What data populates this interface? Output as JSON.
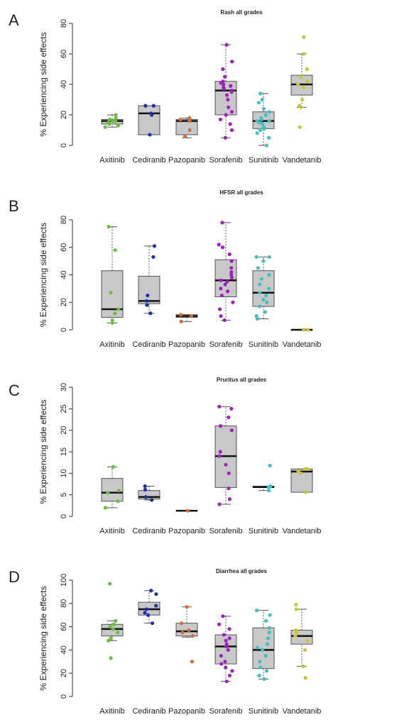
{
  "chart_data": [
    {
      "type": "box",
      "label": "A",
      "title": "Rash all grades",
      "ylabel": "% Experiencing side effects",
      "categories": [
        "Axitinib",
        "Cediranib",
        "Pazopanib",
        "Sorafenib",
        "Sunitinib",
        "Vandetanib"
      ],
      "colors": [
        "#6abf40",
        "#1f2fb0",
        "#d0703a",
        "#a020c0",
        "#40c0c0",
        "#c8c82a"
      ],
      "ylim": [
        0,
        80
      ],
      "yticks": [
        0,
        20,
        40,
        60,
        80
      ],
      "stats": [
        [
          12,
          14,
          16,
          17,
          20
        ],
        [
          7,
          7,
          21,
          26,
          26
        ],
        [
          5,
          7,
          16,
          17,
          18
        ],
        [
          5,
          20,
          36,
          42,
          66
        ],
        [
          0,
          11,
          16,
          22,
          34
        ],
        [
          25,
          33,
          40,
          46,
          60
        ]
      ],
      "points": [
        [
          12,
          13,
          14,
          15,
          16,
          16,
          17,
          18,
          20
        ],
        [
          7,
          20,
          21,
          26,
          26
        ],
        [
          6,
          10,
          16,
          17,
          18
        ],
        [
          5,
          10,
          14,
          17,
          20,
          22,
          25,
          30,
          33,
          35,
          36,
          37,
          38,
          39,
          40,
          41,
          42,
          45,
          50,
          55,
          66
        ],
        [
          0,
          5,
          8,
          10,
          11,
          12,
          14,
          15,
          16,
          16,
          17,
          18,
          20,
          22,
          24,
          28,
          30,
          34
        ],
        [
          12,
          25,
          26,
          30,
          38,
          40,
          42,
          45,
          50,
          60,
          71
        ]
      ]
    },
    {
      "type": "box",
      "label": "B",
      "title": "HFSR all grades",
      "ylabel": "% Experiencing side effects",
      "categories": [
        "Axitinib",
        "Cediranib",
        "Pazopanib",
        "Sorafenib",
        "Sunitinib",
        "Vandetanib"
      ],
      "colors": [
        "#6abf40",
        "#1f2fb0",
        "#d0703a",
        "#a020c0",
        "#40c0c0",
        "#c8c82a"
      ],
      "ylim": [
        0,
        80
      ],
      "yticks": [
        0,
        20,
        40,
        60,
        80
      ],
      "stats": [
        [
          5,
          9,
          15,
          43,
          75
        ],
        [
          12,
          19,
          21,
          39,
          61
        ],
        [
          6,
          9,
          10,
          11,
          11
        ],
        [
          7,
          24,
          36,
          51,
          78
        ],
        [
          8,
          17,
          27,
          43,
          53
        ],
        [
          0,
          0,
          0,
          0,
          0
        ]
      ],
      "points": [
        [
          5,
          7,
          12,
          15,
          27,
          58,
          75
        ],
        [
          12,
          18,
          21,
          25,
          53,
          61
        ],
        [
          6,
          10,
          11
        ],
        [
          7,
          10,
          15,
          20,
          25,
          28,
          30,
          33,
          35,
          36,
          38,
          40,
          42,
          45,
          50,
          55,
          60,
          62,
          78
        ],
        [
          8,
          10,
          13,
          17,
          20,
          22,
          25,
          27,
          30,
          33,
          37,
          40,
          45,
          50,
          53,
          53
        ],
        [
          0,
          0
        ]
      ]
    },
    {
      "type": "box",
      "label": "C",
      "title": "Pruritus all grades",
      "ylabel": "% Experiencing side effects",
      "categories": [
        "Axitinib",
        "Cediranib",
        "Pazopanib",
        "Sorafenib",
        "Sunitinib",
        "Vandetanib"
      ],
      "colors": [
        "#6abf40",
        "#1f2fb0",
        "#d0703a",
        "#a020c0",
        "#40c0c0",
        "#c8c82a"
      ],
      "ylim": [
        0,
        30
      ],
      "yticks": [
        0,
        5,
        10,
        15,
        20,
        25,
        30
      ],
      "stats": [
        [
          2,
          3.5,
          5.5,
          8.8,
          11.5
        ],
        [
          3.8,
          4,
          4.5,
          6,
          7
        ],
        [
          1.3,
          1.3,
          1.3,
          1.3,
          1.3
        ],
        [
          2.8,
          6.7,
          14,
          21,
          25.5
        ],
        [
          6,
          6.8,
          6.8,
          7,
          7
        ],
        [
          5.6,
          5.6,
          10.4,
          11,
          11
        ]
      ],
      "points": [
        [
          2,
          3.5,
          5.5,
          6,
          11.5
        ],
        [
          3.8,
          4.5,
          6.2,
          7
        ],
        [
          1.3
        ],
        [
          2.8,
          4,
          6.5,
          10,
          12,
          14,
          15,
          20,
          21,
          23,
          25,
          25.5
        ],
        [
          6,
          6.8,
          7,
          11.8
        ],
        [
          5.6,
          10,
          10.5,
          11,
          11
        ]
      ]
    },
    {
      "type": "box",
      "label": "D",
      "title": "Diarrhea all grades",
      "ylabel": "% Experiencing side effects",
      "categories": [
        "Axitinib",
        "Cediranib",
        "Pazopanib",
        "Sorafenib",
        "Sunitinib",
        "Vandetanib"
      ],
      "colors": [
        "#6abf40",
        "#1f2fb0",
        "#d0703a",
        "#a020c0",
        "#40c0c0",
        "#c8c82a"
      ],
      "ylim": [
        0,
        100
      ],
      "yticks": [
        0,
        20,
        40,
        60,
        80,
        100
      ],
      "stats": [
        [
          48,
          52,
          58,
          62,
          65
        ],
        [
          63,
          70,
          75,
          81,
          91
        ],
        [
          51,
          52,
          56,
          63,
          77
        ],
        [
          13,
          28,
          43,
          53,
          69
        ],
        [
          15,
          24,
          40,
          59,
          74
        ],
        [
          26,
          45,
          52,
          57,
          75
        ]
      ],
      "points": [
        [
          33,
          48,
          50,
          55,
          58,
          60,
          62,
          65,
          97
        ],
        [
          63,
          70,
          72,
          75,
          78,
          88,
          91
        ],
        [
          30,
          52,
          55,
          57,
          63,
          77
        ],
        [
          13,
          18,
          22,
          25,
          28,
          30,
          35,
          40,
          43,
          45,
          48,
          50,
          53,
          58,
          62,
          69
        ],
        [
          15,
          18,
          22,
          25,
          30,
          35,
          40,
          42,
          45,
          50,
          55,
          59,
          65,
          70,
          74
        ],
        [
          16,
          26,
          40,
          48,
          52,
          55,
          57,
          75,
          79
        ]
      ]
    }
  ]
}
